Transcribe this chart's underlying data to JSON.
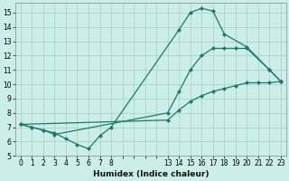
{
  "xlabel": "Humidex (Indice chaleur)",
  "bg_color": "#cceee8",
  "grid_color": "#aad4ce",
  "line_color": "#1a7a6e",
  "line1_x_raw": [
    0,
    1,
    2,
    3,
    4,
    5,
    6,
    7,
    8,
    14,
    15,
    16,
    17,
    18,
    20,
    22,
    23
  ],
  "line1_y": [
    7.2,
    7.0,
    6.8,
    6.6,
    6.2,
    5.8,
    5.5,
    6.4,
    7.0,
    13.8,
    15.0,
    15.3,
    15.1,
    13.5,
    12.6,
    11.0,
    10.2
  ],
  "line2_x_raw": [
    0,
    1,
    2,
    3,
    13,
    14,
    15,
    16,
    17,
    18,
    19,
    20,
    22,
    23
  ],
  "line2_y": [
    7.2,
    7.0,
    6.8,
    6.5,
    8.0,
    9.5,
    11.0,
    12.0,
    12.5,
    12.5,
    12.5,
    12.5,
    11.0,
    10.2
  ],
  "line3_x_raw": [
    0,
    13,
    14,
    15,
    16,
    17,
    18,
    19,
    20,
    21,
    22,
    23
  ],
  "line3_y": [
    7.2,
    7.5,
    8.2,
    8.8,
    9.2,
    9.5,
    9.7,
    9.9,
    10.1,
    10.1,
    10.1,
    10.2
  ],
  "xtick_labels": [
    "0",
    "1",
    "2",
    "3",
    "4",
    "5",
    "6",
    "7",
    "8",
    "",
    "",
    "",
    "",
    "13",
    "14",
    "15",
    "16",
    "17",
    "18",
    "19",
    "20",
    "21",
    "22",
    "23"
  ],
  "xtick_raw": [
    0,
    1,
    2,
    3,
    4,
    5,
    6,
    7,
    8,
    9,
    10,
    11,
    12,
    13,
    14,
    15,
    16,
    17,
    18,
    19,
    20,
    21,
    22,
    23
  ],
  "yticks": [
    5,
    6,
    7,
    8,
    9,
    10,
    11,
    12,
    13,
    14,
    15
  ],
  "xlim": [
    -0.5,
    23.5
  ],
  "ylim": [
    5.0,
    15.7
  ]
}
